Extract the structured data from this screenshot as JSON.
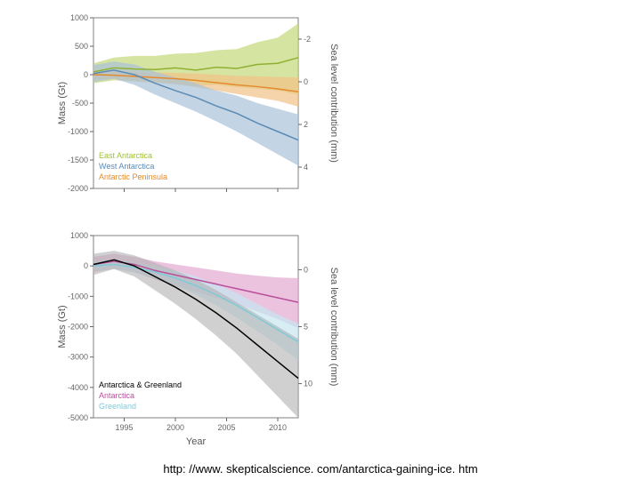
{
  "top_chart": {
    "type": "line_with_band",
    "x_range": [
      1992,
      2012
    ],
    "y_left": {
      "label": "Mass (Gt)",
      "lim": [
        -2000,
        1000
      ],
      "ticks": [
        -2000,
        -1500,
        -1000,
        -500,
        0,
        500,
        1000
      ]
    },
    "y_right": {
      "label": "Sea level contribution (mm)",
      "lim": [
        5,
        -3
      ],
      "ticks": [
        -2,
        0,
        2,
        4
      ]
    },
    "x_ticks": [
      1995,
      2000,
      2005,
      2010
    ],
    "background": "#ffffff",
    "border_color": "#808080",
    "grid": false,
    "label_fontsize": 11,
    "tick_fontsize": 9,
    "legend": {
      "position": "lower-left-inside",
      "items": [
        {
          "label": "East Antarctica",
          "color": "#a2c037"
        },
        {
          "label": "West Antarctica",
          "color": "#5b8bb5"
        },
        {
          "label": "Antarctic Peninsula",
          "color": "#e38b2c"
        }
      ],
      "fontsize": 9
    },
    "series": [
      {
        "name": "East Antarctica",
        "color": "#8fb032",
        "band_color": "#c5d97a",
        "band_opacity": 0.7,
        "x": [
          1992,
          1994,
          1996,
          1998,
          2000,
          2002,
          2004,
          2006,
          2008,
          2010,
          2012
        ],
        "y": [
          50,
          120,
          100,
          90,
          120,
          80,
          130,
          110,
          180,
          200,
          300
        ],
        "band_lo": [
          -150,
          -100,
          -120,
          -140,
          -160,
          -200,
          -180,
          -220,
          -250,
          -280,
          -350
        ],
        "band_hi": [
          200,
          300,
          330,
          330,
          370,
          380,
          430,
          450,
          570,
          650,
          900
        ]
      },
      {
        "name": "Antarctic Peninsula",
        "color": "#e38b2c",
        "band_color": "#f2c288",
        "band_opacity": 0.7,
        "x": [
          1992,
          1994,
          1996,
          1998,
          2000,
          2002,
          2004,
          2006,
          2008,
          2010,
          2012
        ],
        "y": [
          0,
          -10,
          -30,
          -50,
          -70,
          -100,
          -140,
          -180,
          -210,
          -250,
          -300
        ],
        "band_lo": [
          -80,
          -80,
          -110,
          -140,
          -170,
          -220,
          -280,
          -340,
          -400,
          -460,
          -560
        ],
        "band_hi": [
          80,
          70,
          50,
          40,
          30,
          20,
          0,
          -20,
          -30,
          -40,
          -50
        ]
      },
      {
        "name": "West Antarctica",
        "color": "#5b8bb5",
        "band_color": "#a9c2d9",
        "band_opacity": 0.7,
        "x": [
          1992,
          1994,
          1996,
          1998,
          2000,
          2002,
          2004,
          2006,
          2008,
          2010,
          2012
        ],
        "y": [
          20,
          80,
          0,
          -150,
          -280,
          -400,
          -550,
          -680,
          -850,
          -1000,
          -1150
        ],
        "band_lo": [
          -130,
          -70,
          -180,
          -350,
          -500,
          -650,
          -820,
          -1000,
          -1200,
          -1400,
          -1600
        ],
        "band_hi": [
          170,
          230,
          180,
          50,
          -50,
          -150,
          -280,
          -370,
          -500,
          -600,
          -700
        ]
      }
    ]
  },
  "bottom_chart": {
    "type": "line_with_band",
    "x_range": [
      1992,
      2012
    ],
    "y_left": {
      "label": "Mass (Gt)",
      "lim": [
        -5000,
        1000
      ],
      "ticks": [
        -5000,
        -4000,
        -3000,
        -2000,
        -1000,
        0,
        1000
      ]
    },
    "y_right": {
      "label": "Sea level contribution (mm)",
      "lim": [
        13,
        -3
      ],
      "ticks": [
        0,
        5,
        10
      ]
    },
    "x_label": "Year",
    "x_ticks": [
      1995,
      2000,
      2005,
      2010
    ],
    "background": "#ffffff",
    "border_color": "#808080",
    "grid": false,
    "label_fontsize": 11,
    "tick_fontsize": 9,
    "legend": {
      "position": "lower-left-inside",
      "items": [
        {
          "label": "Antarctica & Greenland",
          "color": "#000000"
        },
        {
          "label": "Antarctica",
          "color": "#b8509b"
        },
        {
          "label": "Greenland",
          "color": "#7fc9d9"
        }
      ],
      "fontsize": 9
    },
    "series": [
      {
        "name": "Antarctica",
        "color": "#b8509b",
        "band_color": "#e4a9d1",
        "band_opacity": 0.7,
        "x": [
          1992,
          1994,
          1996,
          1998,
          2000,
          2002,
          2004,
          2006,
          2008,
          2010,
          2012
        ],
        "y": [
          50,
          150,
          50,
          -150,
          -300,
          -450,
          -600,
          -750,
          -900,
          -1050,
          -1200
        ],
        "band_lo": [
          -200,
          -100,
          -200,
          -450,
          -650,
          -850,
          -1050,
          -1250,
          -1500,
          -1750,
          -2050
        ],
        "band_hi": [
          300,
          400,
          300,
          150,
          50,
          -50,
          -150,
          -250,
          -320,
          -380,
          -400
        ]
      },
      {
        "name": "Greenland",
        "color": "#7fc9d9",
        "band_color": "#c4e7ef",
        "band_opacity": 0.7,
        "x": [
          1992,
          1994,
          1996,
          1998,
          2000,
          2002,
          2004,
          2006,
          2008,
          2010,
          2012
        ],
        "y": [
          0,
          50,
          -50,
          -200,
          -400,
          -650,
          -950,
          -1300,
          -1700,
          -2100,
          -2500
        ],
        "band_lo": [
          -150,
          -100,
          -220,
          -400,
          -650,
          -950,
          -1300,
          -1700,
          -2150,
          -2600,
          -3100
        ],
        "band_hi": [
          150,
          200,
          120,
          0,
          -150,
          -350,
          -600,
          -900,
          -1250,
          -1600,
          -1900
        ]
      },
      {
        "name": "Antarctica & Greenland",
        "color": "#000000",
        "band_color": "#b0b0b0",
        "band_opacity": 0.6,
        "x": [
          1992,
          1994,
          1996,
          1998,
          2000,
          2002,
          2004,
          2006,
          2008,
          2010,
          2012
        ],
        "y": [
          50,
          200,
          0,
          -350,
          -700,
          -1100,
          -1550,
          -2050,
          -2600,
          -3150,
          -3700
        ],
        "band_lo": [
          -300,
          -100,
          -350,
          -800,
          -1250,
          -1750,
          -2300,
          -2900,
          -3600,
          -4300,
          -5000
        ],
        "band_hi": [
          400,
          500,
          350,
          100,
          -150,
          -450,
          -800,
          -1200,
          -1600,
          -2000,
          -2400
        ]
      }
    ]
  },
  "footer_text": "http: //www. skepticalscience. com/antarctica-gaining-ice. htm"
}
